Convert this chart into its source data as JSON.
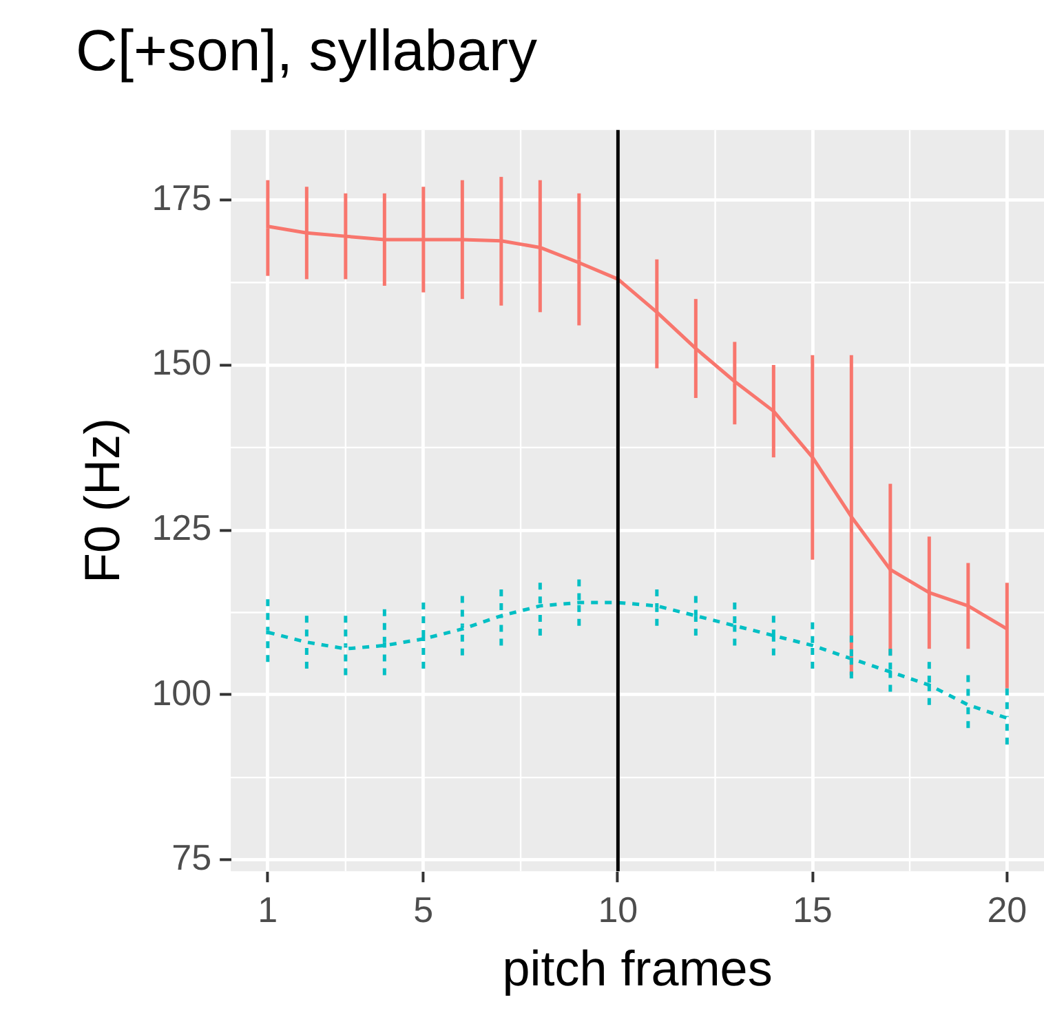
{
  "chart_data": {
    "type": "line",
    "title": "C[+son], syllabary",
    "xlabel": "pitch frames",
    "ylabel": "F0 (Hz)",
    "x": [
      1,
      2,
      3,
      4,
      5,
      6,
      7,
      8,
      9,
      10,
      11,
      12,
      13,
      14,
      15,
      16,
      17,
      18,
      19,
      20
    ],
    "series": [
      {
        "color": "#f8766d",
        "line_style": "solid",
        "values": [
          171,
          170,
          169.5,
          169,
          169,
          169,
          168.8,
          167.8,
          165.5,
          163,
          158,
          152.5,
          147.5,
          143,
          136,
          127,
          119,
          115.5,
          113.5,
          110
        ],
        "errors": [
          [
            163.5,
            178
          ],
          [
            163,
            177
          ],
          [
            163,
            176
          ],
          [
            162,
            176
          ],
          [
            161,
            177
          ],
          [
            160,
            178
          ],
          [
            159,
            178.5
          ],
          [
            158,
            178
          ],
          [
            156,
            176
          ],
          null,
          [
            149.5,
            166
          ],
          [
            145,
            160
          ],
          [
            141,
            153.5
          ],
          [
            136,
            150
          ],
          [
            120.5,
            151.5
          ],
          [
            103,
            151.5
          ],
          [
            106,
            132
          ],
          [
            107,
            124
          ],
          [
            107,
            120
          ],
          [
            101,
            117
          ]
        ]
      },
      {
        "color": "#00bfc4",
        "line_style": "dotted",
        "values": [
          109.5,
          108,
          107,
          107.5,
          108.5,
          110,
          112,
          113.5,
          114,
          114,
          113.5,
          112,
          110.5,
          109,
          107.5,
          105.5,
          103.5,
          101.5,
          98.5,
          96.5
        ],
        "errors": [
          [
            105,
            114.5
          ],
          [
            104,
            112
          ],
          [
            103,
            112
          ],
          [
            103,
            113
          ],
          [
            104,
            114
          ],
          [
            106,
            115
          ],
          [
            107.5,
            116
          ],
          [
            109,
            117
          ],
          [
            110.5,
            117.5
          ],
          null,
          [
            110.5,
            116
          ],
          [
            109,
            115
          ],
          [
            107.5,
            114
          ],
          [
            106,
            112
          ],
          [
            104,
            111
          ],
          [
            102.5,
            109
          ],
          [
            100.5,
            107
          ],
          [
            98.5,
            105
          ],
          [
            95,
            103
          ],
          [
            92.5,
            101
          ]
        ]
      }
    ],
    "ref_lines": [
      {
        "axis": "x",
        "value": 10,
        "color": "#000000"
      }
    ],
    "xlim": [
      0.05,
      20.95
    ],
    "xticks": [
      1,
      5,
      10,
      15,
      20
    ],
    "ylim": [
      73.3,
      185.6
    ],
    "yticks": [
      75,
      100,
      125,
      150,
      175
    ],
    "grid": true,
    "legend": false,
    "marker": "none"
  }
}
